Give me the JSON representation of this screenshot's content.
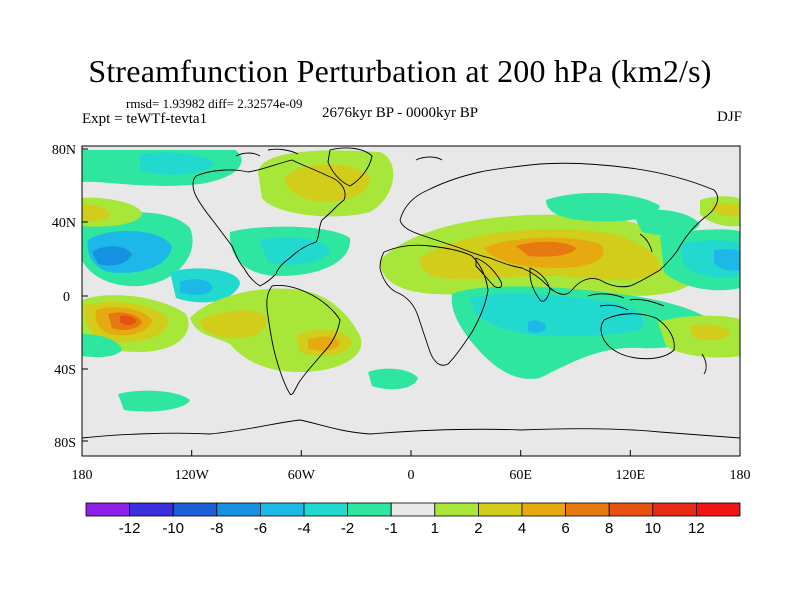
{
  "title": "Streamfunction Perturbation at 200 hPa (km2/s)",
  "stats": "rmsd= 1.93982 diff= 2.32574e-09",
  "experiment": "Expt = teWTf-tevta1",
  "period": "2676kyr BP - 0000kyr BP",
  "season": "DJF",
  "lat_ticks": [
    "80N",
    "40N",
    "0",
    "40S",
    "80S"
  ],
  "lon_ticks": [
    "180",
    "120W",
    "60W",
    "0",
    "60E",
    "120E",
    "180"
  ],
  "colorbar": {
    "levels": [
      "-12",
      "-10",
      "-8",
      "-6",
      "-4",
      "-2",
      "-1",
      "1",
      "2",
      "4",
      "6",
      "8",
      "10",
      "12"
    ],
    "colors": [
      "#8f1fe6",
      "#3a2fdc",
      "#1a5fd8",
      "#1690e0",
      "#1bb8e8",
      "#22d9d0",
      "#2fe6a0",
      "#e8e8e8",
      "#a8e63a",
      "#d2cc1a",
      "#e6aa10",
      "#e67a10",
      "#e65210",
      "#e62a14",
      "#f01414"
    ]
  },
  "colors": {
    "background": "#e8e8e8",
    "frame": "#000000"
  }
}
